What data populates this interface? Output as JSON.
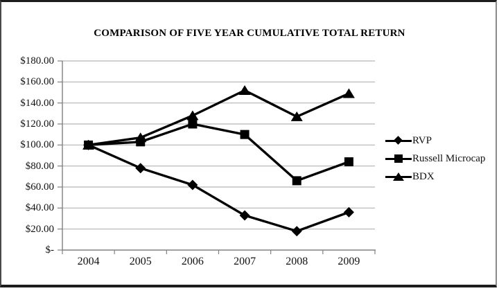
{
  "chart_data": {
    "type": "line",
    "title": "COMPARISON OF FIVE YEAR CUMULATIVE TOTAL RETURN",
    "categories": [
      "2004",
      "2005",
      "2006",
      "2007",
      "2008",
      "2009"
    ],
    "series": [
      {
        "name": "RVP",
        "marker": "diamond",
        "values": [
          100,
          78,
          62,
          33,
          18,
          36
        ]
      },
      {
        "name": "Russell Microcap",
        "marker": "square",
        "values": [
          100,
          103,
          120,
          110,
          66,
          84
        ]
      },
      {
        "name": "BDX",
        "marker": "triangle",
        "values": [
          100,
          107,
          128,
          152,
          127,
          149
        ]
      }
    ],
    "xlabel": "",
    "ylabel": "",
    "ylim": [
      0,
      180
    ],
    "y_step": 20,
    "y_tick_labels": [
      "$180.00",
      "$160.00",
      "$140.00",
      "$120.00",
      "$100.00",
      "$80.00",
      "$60.00",
      "$40.00",
      "$20.00",
      "$-"
    ],
    "grid": true,
    "legend_position": "right",
    "colors": {
      "series_line": "#000000",
      "gridline": "#b3b3b3",
      "axis": "#808080",
      "text": "#111111",
      "frame_border": "#1c1c1c"
    }
  }
}
